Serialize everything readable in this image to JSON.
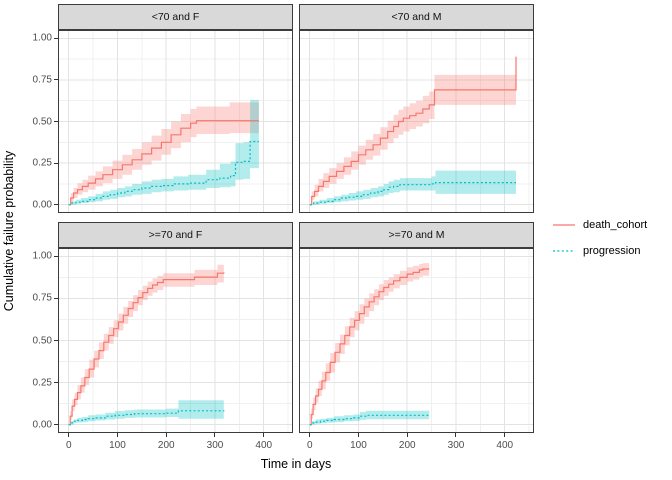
{
  "figure": {
    "background": "#ffffff",
    "kind": "faceted cumulative incidence (step) plot, ggplot2 theme_bw style"
  },
  "axes": {
    "x_title": "Time in days",
    "y_title": "Cumulative failure probability",
    "x_tick_labels": [
      "0",
      "100",
      "200",
      "300",
      "400"
    ],
    "x_tick_values": [
      0,
      100,
      200,
      300,
      400
    ],
    "y_tick_labels": [
      "0.00",
      "0.25",
      "0.50",
      "0.75",
      "1.00"
    ],
    "y_tick_values": [
      0,
      0.25,
      0.5,
      0.75,
      1.0
    ]
  },
  "legend": {
    "items": [
      {
        "label": "death_cohort",
        "color": "#F8766D",
        "linestyle": "solid"
      },
      {
        "label": "progression",
        "color": "#00BFC4",
        "linestyle": "dotted"
      }
    ]
  },
  "style": {
    "strip_background": "#d9d9d9",
    "panel_border": "#3c3c3c",
    "grid_major": "#e3e3e3",
    "grid_minor": "#f0f0f0",
    "death_line": "#F8766D",
    "death_ribbon": "rgba(248,118,109,0.30)",
    "progression_line": "#00BFC4",
    "progression_ribbon": "rgba(0,191,196,0.30)"
  },
  "chart_data": {
    "type": "line",
    "subtype": "step-cumulative-incidence-with-confidence-ribbons",
    "x_range_days": [
      0,
      425
    ],
    "x_domain": [
      -22,
      460
    ],
    "y_domain": [
      -0.05,
      1.05
    ],
    "grid": "on",
    "legend_position": "right",
    "facet_layout": [
      [
        "<70 and F",
        "<70 and M"
      ],
      [
        ">=70 and F",
        ">=70 and M"
      ]
    ],
    "panels": [
      {
        "label": "<70 and F",
        "series": [
          {
            "name": "death_cohort",
            "x": [
              0,
              4,
              10,
              18,
              28,
              40,
              55,
              70,
              90,
              110,
              130,
              150,
              170,
              190,
              210,
              230,
              250,
              262,
              330,
              390
            ],
            "y": [
              0,
              0.04,
              0.07,
              0.09,
              0.11,
              0.13,
              0.155,
              0.18,
              0.21,
              0.24,
              0.27,
              0.305,
              0.34,
              0.375,
              0.42,
              0.46,
              0.49,
              0.505,
              0.505,
              0.505
            ],
            "lo": [
              0,
              0.02,
              0.04,
              0.06,
              0.075,
              0.09,
              0.11,
              0.13,
              0.155,
              0.18,
              0.21,
              0.24,
              0.265,
              0.3,
              0.34,
              0.375,
              0.405,
              0.425,
              0.43,
              0.43
            ],
            "hi": [
              0,
              0.07,
              0.1,
              0.13,
              0.15,
              0.175,
              0.2,
              0.23,
              0.265,
              0.3,
              0.335,
              0.375,
              0.415,
              0.455,
              0.5,
              0.545,
              0.575,
              0.59,
              0.615,
              0.615
            ]
          },
          {
            "name": "progression",
            "x": [
              0,
              6,
              15,
              25,
              40,
              55,
              70,
              85,
              100,
              115,
              130,
              150,
              170,
              190,
              215,
              245,
              270,
              282,
              310,
              332,
              342,
              358,
              372,
              390
            ],
            "y": [
              0,
              0.01,
              0.015,
              0.02,
              0.03,
              0.04,
              0.05,
              0.06,
              0.07,
              0.08,
              0.09,
              0.1,
              0.11,
              0.115,
              0.125,
              0.13,
              0.13,
              0.15,
              0.16,
              0.175,
              0.255,
              0.26,
              0.38,
              0.38
            ],
            "lo": [
              0,
              0,
              0.005,
              0.01,
              0.015,
              0.02,
              0.03,
              0.035,
              0.045,
              0.05,
              0.06,
              0.065,
              0.075,
              0.08,
              0.085,
              0.09,
              0.09,
              0.1,
              0.105,
              0.11,
              0.15,
              0.155,
              0.22,
              0.22
            ],
            "hi": [
              0,
              0.02,
              0.03,
              0.04,
              0.05,
              0.065,
              0.08,
              0.09,
              0.1,
              0.11,
              0.125,
              0.14,
              0.15,
              0.155,
              0.17,
              0.18,
              0.18,
              0.21,
              0.245,
              0.26,
              0.37,
              0.375,
              0.63,
              0.63
            ]
          }
        ]
      },
      {
        "label": "<70 and M",
        "series": [
          {
            "name": "death_cohort",
            "x": [
              0,
              4,
              10,
              18,
              28,
              40,
              55,
              70,
              85,
              100,
              115,
              130,
              145,
              160,
              172,
              182,
              192,
              205,
              218,
              232,
              245,
              256,
              415,
              423
            ],
            "y": [
              0,
              0.05,
              0.08,
              0.11,
              0.14,
              0.17,
              0.2,
              0.23,
              0.26,
              0.3,
              0.33,
              0.36,
              0.4,
              0.44,
              0.47,
              0.5,
              0.52,
              0.535,
              0.55,
              0.575,
              0.6,
              0.69,
              0.69,
              0.89
            ],
            "lo": [
              0,
              0.03,
              0.05,
              0.08,
              0.1,
              0.125,
              0.155,
              0.18,
              0.21,
              0.24,
              0.27,
              0.295,
              0.33,
              0.37,
              0.4,
              0.42,
              0.44,
              0.455,
              0.47,
              0.49,
              0.515,
              0.6,
              0.6,
              0.6
            ],
            "hi": [
              0,
              0.08,
              0.12,
              0.155,
              0.19,
              0.22,
              0.25,
              0.285,
              0.32,
              0.355,
              0.39,
              0.425,
              0.465,
              0.505,
              0.54,
              0.57,
              0.59,
              0.61,
              0.625,
              0.655,
              0.68,
              0.78,
              0.78,
              0.78
            ]
          },
          {
            "name": "progression",
            "x": [
              0,
              8,
              20,
              35,
              50,
              65,
              80,
              95,
              110,
              125,
              140,
              152,
              162,
              172,
              185,
              250,
              258,
              423
            ],
            "y": [
              0,
              0.01,
              0.015,
              0.02,
              0.03,
              0.04,
              0.045,
              0.05,
              0.06,
              0.07,
              0.08,
              0.09,
              0.105,
              0.11,
              0.12,
              0.125,
              0.133,
              0.133
            ],
            "lo": [
              0,
              0,
              0.005,
              0.01,
              0.015,
              0.02,
              0.025,
              0.03,
              0.035,
              0.045,
              0.05,
              0.06,
              0.07,
              0.075,
              0.085,
              0.085,
              0.065,
              0.065
            ],
            "hi": [
              0,
              0.02,
              0.03,
              0.04,
              0.05,
              0.06,
              0.07,
              0.08,
              0.09,
              0.1,
              0.11,
              0.125,
              0.14,
              0.15,
              0.16,
              0.17,
              0.205,
              0.205
            ]
          }
        ]
      },
      {
        "label": ">=70 and F",
        "series": [
          {
            "name": "death_cohort",
            "x": [
              0,
              3,
              7,
              12,
              18,
              25,
              33,
              42,
              52,
              62,
              72,
              82,
              92,
              102,
              112,
              122,
              132,
              142,
              152,
              162,
              172,
              182,
              194,
              240,
              258,
              305,
              318
            ],
            "y": [
              0,
              0.05,
              0.11,
              0.15,
              0.19,
              0.23,
              0.28,
              0.33,
              0.39,
              0.44,
              0.49,
              0.53,
              0.57,
              0.61,
              0.65,
              0.69,
              0.725,
              0.755,
              0.785,
              0.81,
              0.83,
              0.845,
              0.862,
              0.862,
              0.877,
              0.9,
              0.905
            ],
            "lo": [
              0,
              0.03,
              0.08,
              0.115,
              0.15,
              0.19,
              0.235,
              0.28,
              0.34,
              0.39,
              0.44,
              0.48,
              0.52,
              0.56,
              0.6,
              0.64,
              0.675,
              0.71,
              0.74,
              0.765,
              0.785,
              0.8,
              0.82,
              0.82,
              0.83,
              0.845,
              0.85
            ],
            "hi": [
              0,
              0.08,
              0.15,
              0.19,
              0.235,
              0.28,
              0.33,
              0.385,
              0.44,
              0.49,
              0.54,
              0.58,
              0.62,
              0.66,
              0.7,
              0.735,
              0.77,
              0.8,
              0.825,
              0.85,
              0.87,
              0.885,
              0.9,
              0.9,
              0.92,
              0.95,
              0.955
            ]
          },
          {
            "name": "progression",
            "x": [
              0,
              4,
              10,
              18,
              28,
              40,
              55,
              75,
              95,
              115,
              135,
              155,
              200,
              225,
              318
            ],
            "y": [
              0,
              0.01,
              0.02,
              0.025,
              0.03,
              0.035,
              0.04,
              0.05,
              0.055,
              0.06,
              0.065,
              0.065,
              0.068,
              0.082,
              0.085
            ],
            "lo": [
              0,
              0,
              0.01,
              0.012,
              0.015,
              0.02,
              0.025,
              0.03,
              0.035,
              0.04,
              0.042,
              0.042,
              0.045,
              0.035,
              0.035
            ],
            "hi": [
              0,
              0.02,
              0.03,
              0.04,
              0.045,
              0.055,
              0.06,
              0.07,
              0.08,
              0.085,
              0.09,
              0.09,
              0.095,
              0.145,
              0.145
            ]
          }
        ]
      },
      {
        "label": ">=70 and M",
        "series": [
          {
            "name": "death_cohort",
            "x": [
              0,
              3,
              7,
              12,
              18,
              25,
              33,
              42,
              52,
              62,
              72,
              82,
              92,
              102,
              112,
              122,
              132,
              142,
              152,
              162,
              172,
              185,
              200,
              212,
              225,
              232,
              245
            ],
            "y": [
              0,
              0.06,
              0.12,
              0.17,
              0.21,
              0.26,
              0.31,
              0.37,
              0.43,
              0.48,
              0.53,
              0.58,
              0.62,
              0.66,
              0.7,
              0.73,
              0.76,
              0.79,
              0.815,
              0.835,
              0.855,
              0.875,
              0.895,
              0.905,
              0.92,
              0.925,
              0.925
            ],
            "lo": [
              0,
              0.035,
              0.085,
              0.13,
              0.17,
              0.21,
              0.26,
              0.31,
              0.37,
              0.42,
              0.47,
              0.52,
              0.56,
              0.6,
              0.64,
              0.675,
              0.71,
              0.74,
              0.765,
              0.79,
              0.81,
              0.83,
              0.85,
              0.862,
              0.878,
              0.885,
              0.885
            ],
            "hi": [
              0,
              0.095,
              0.16,
              0.215,
              0.26,
              0.315,
              0.365,
              0.425,
              0.485,
              0.535,
              0.585,
              0.635,
              0.675,
              0.715,
              0.75,
              0.78,
              0.805,
              0.835,
              0.86,
              0.875,
              0.895,
              0.915,
              0.935,
              0.945,
              0.955,
              0.96,
              0.96
            ]
          },
          {
            "name": "progression",
            "x": [
              0,
              5,
              12,
              22,
              35,
              50,
              70,
              90,
              103,
              115,
              245
            ],
            "y": [
              0,
              0.01,
              0.015,
              0.02,
              0.025,
              0.03,
              0.035,
              0.04,
              0.05,
              0.055,
              0.057
            ],
            "lo": [
              0,
              0,
              0.005,
              0.008,
              0.012,
              0.015,
              0.02,
              0.022,
              0.028,
              0.032,
              0.032
            ],
            "hi": [
              0,
              0.02,
              0.03,
              0.035,
              0.04,
              0.05,
              0.055,
              0.06,
              0.075,
              0.082,
              0.082
            ]
          }
        ]
      }
    ]
  }
}
